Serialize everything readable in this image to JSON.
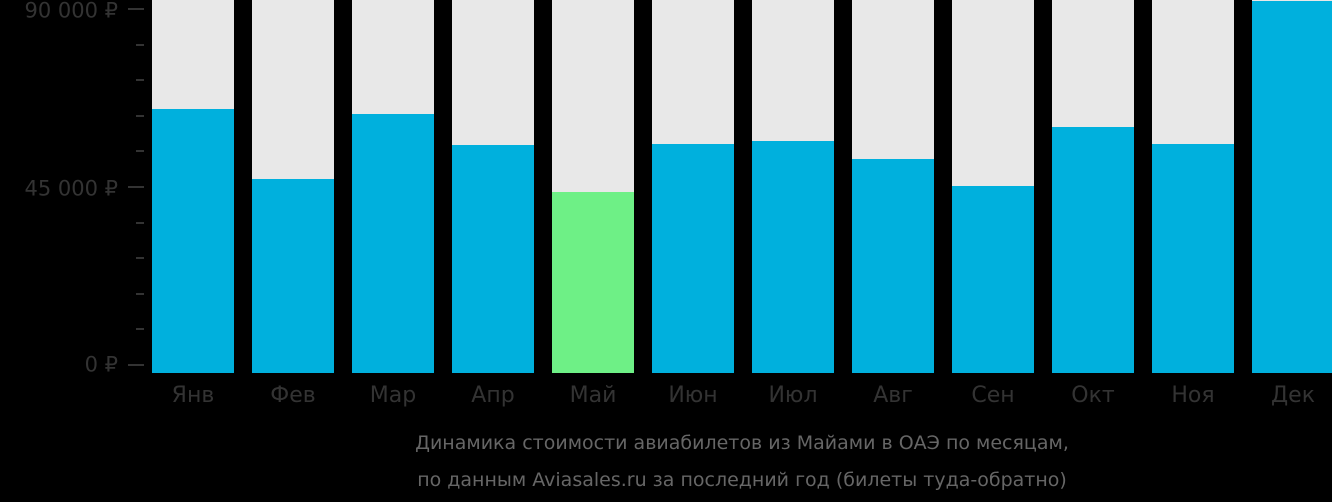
{
  "chart_data": {
    "type": "bar",
    "title": "Динамика стоимости авиабилетов из Майами в ОАЭ по месяцам, по данным Aviasales.ru за последний год (билеты туда-обратно)",
    "xlabel": "",
    "ylabel": "",
    "categories": [
      "Янв",
      "Фев",
      "Мар",
      "Апр",
      "Май",
      "Июн",
      "Июл",
      "Авг",
      "Сен",
      "Окт",
      "Ноя",
      "Дек"
    ],
    "values": [
      65300,
      48000,
      64000,
      56400,
      44800,
      56600,
      57400,
      52900,
      46200,
      60800,
      56600,
      92000
    ],
    "ylim": [
      0,
      90000
    ],
    "yticks": [
      0,
      45000,
      90000
    ],
    "ytick_labels": [
      "0 ₽",
      "45 000 ₽",
      "90 000 ₽"
    ],
    "minor_tick_step": 9000,
    "highlight_index": 4,
    "grid": false,
    "legend": null,
    "colors": {
      "bar": "#00b0dd",
      "highlight": "#6ef086",
      "track": "#e8e8e8",
      "background": "#000000",
      "axis_text": "#333333",
      "caption_text": "#666666"
    }
  },
  "y_axis": {
    "labels": [
      "90 000 ₽",
      "45 000 ₽",
      "0 ₽"
    ]
  },
  "caption": {
    "line1": "Динамика стоимости авиабилетов из Майами в ОАЭ по месяцам,",
    "line2": "по данным Aviasales.ru за последний год (билеты туда-обратно)"
  }
}
